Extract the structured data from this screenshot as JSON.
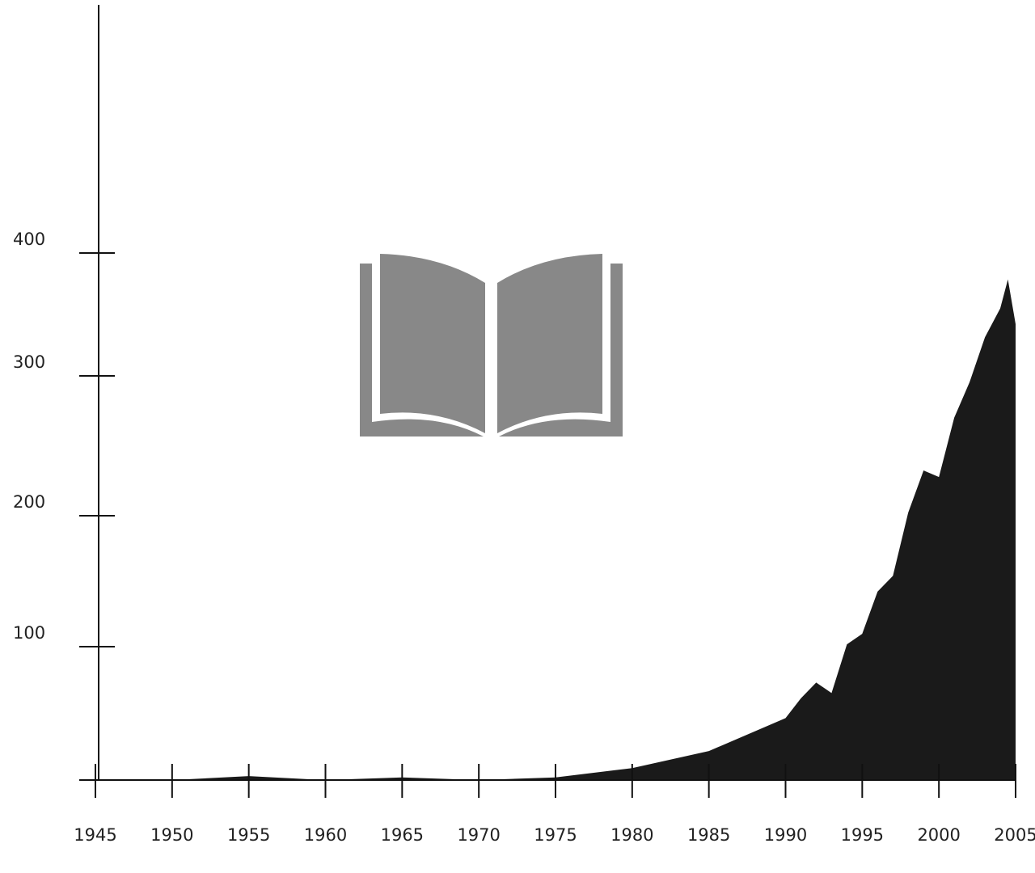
{
  "chart_data": {
    "type": "area",
    "title": "",
    "xlabel": "",
    "ylabel": "",
    "x_ticks": [
      1945,
      1950,
      1955,
      1960,
      1965,
      1970,
      1975,
      1980,
      1985,
      1990,
      1995,
      2000,
      2005
    ],
    "y_ticks": [
      100,
      200,
      300,
      400
    ],
    "xlim": [
      1945,
      2005
    ],
    "ylim": [
      0,
      400
    ],
    "grid": false,
    "legend": "none",
    "series": [
      {
        "x": [
          1945,
          1950,
          1955,
          1960,
          1965,
          1970,
          1975,
          1980,
          1985,
          1990,
          1991,
          1992,
          1993,
          1994,
          1995,
          1996,
          1997,
          1998,
          1999,
          2000,
          2001,
          2002,
          2003,
          2004,
          2004.5,
          2005
        ],
        "y": [
          0,
          0,
          3,
          0,
          2,
          0,
          2,
          9,
          22,
          47,
          62,
          74,
          66,
          103,
          111,
          143,
          155,
          203,
          235,
          230,
          275,
          302,
          336,
          358,
          380,
          346
        ],
        "color": "#1a1a1a"
      }
    ],
    "colors": {
      "area": "#1a1a1a",
      "axis": "#111111",
      "text": "#222222",
      "book_icon": "#888888"
    }
  },
  "decorations": {
    "icon": "open-book-icon"
  }
}
